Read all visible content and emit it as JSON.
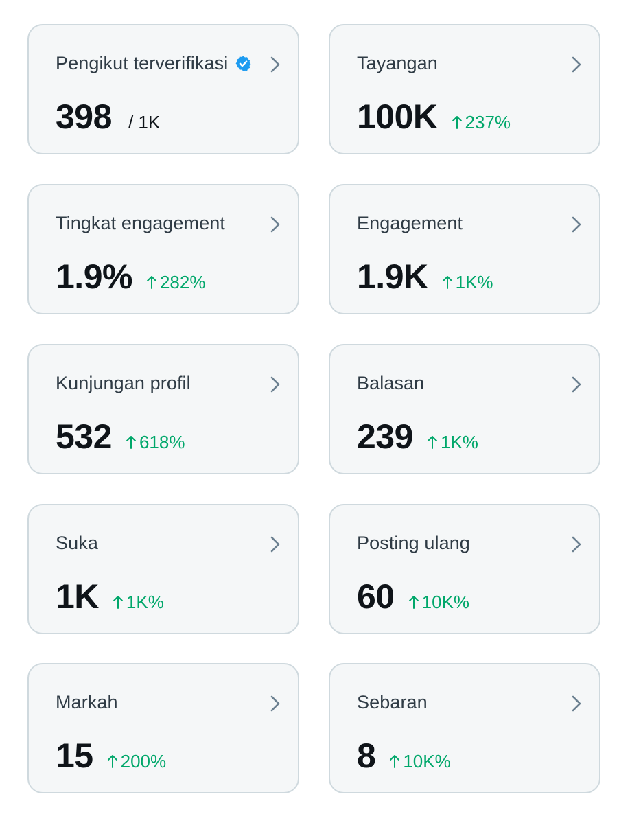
{
  "cards": [
    {
      "title": "Pengikut terverifikasi",
      "value": "398",
      "suffix": "/ 1K",
      "verified": true,
      "icon": "verified-badge-icon",
      "accent": "#1d9bf0"
    },
    {
      "title": "Tayangan",
      "value": "100K",
      "change": "237%",
      "direction": "up"
    },
    {
      "title": "Tingkat engagement",
      "value": "1.9%",
      "change": "282%",
      "direction": "up"
    },
    {
      "title": "Engagement",
      "value": "1.9K",
      "change": "1K%",
      "direction": "up"
    },
    {
      "title": "Kunjungan profil",
      "value": "532",
      "change": "618%",
      "direction": "up"
    },
    {
      "title": "Balasan",
      "value": "239",
      "change": "1K%",
      "direction": "up"
    },
    {
      "title": "Suka",
      "value": "1K",
      "change": "1K%",
      "direction": "up"
    },
    {
      "title": "Posting ulang",
      "value": "60",
      "change": "10K%",
      "direction": "up"
    },
    {
      "title": "Markah",
      "value": "15",
      "change": "200%",
      "direction": "up"
    },
    {
      "title": "Sebaran",
      "value": "8",
      "change": "10K%",
      "direction": "up"
    }
  ],
  "colors": {
    "positive_change": "#00a76a",
    "card_background": "#f5f7f8",
    "card_border": "#cfd9de",
    "chevron": "#6b8090"
  }
}
